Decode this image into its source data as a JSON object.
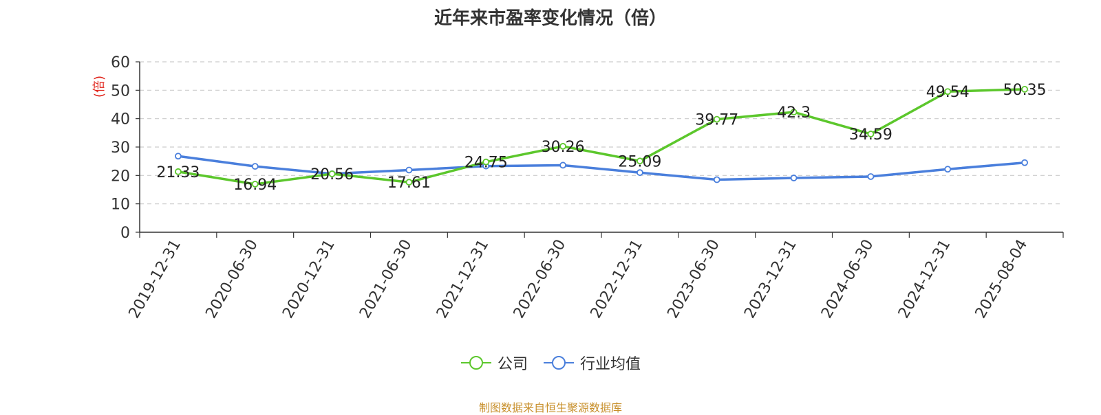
{
  "chart_data": {
    "type": "line",
    "title": "近年来市盈率变化情况（倍）",
    "ylabel": "(倍)",
    "ylim": [
      0,
      60
    ],
    "yticks": [
      0,
      10,
      20,
      30,
      40,
      50,
      60
    ],
    "grid": true,
    "legend_position": "bottom",
    "categories": [
      "2019-12-31",
      "2020-06-30",
      "2020-12-31",
      "2021-06-30",
      "2021-12-31",
      "2022-06-30",
      "2022-12-31",
      "2023-06-30",
      "2023-12-31",
      "2024-06-30",
      "2024-12-31",
      "2025-08-04"
    ],
    "series": [
      {
        "name": "公司",
        "color": "#5cc72c",
        "show_labels": true,
        "values": [
          21.33,
          16.94,
          20.56,
          17.61,
          24.75,
          30.26,
          25.09,
          39.77,
          42.3,
          34.59,
          49.54,
          50.35
        ]
      },
      {
        "name": "行业均值",
        "color": "#4a7fdc",
        "show_labels": false,
        "values": [
          26.8,
          23.2,
          20.6,
          21.9,
          23.3,
          23.6,
          21.0,
          18.5,
          19.1,
          19.6,
          22.2,
          24.5
        ]
      }
    ]
  },
  "source": "制图数据来自恒生聚源数据库"
}
